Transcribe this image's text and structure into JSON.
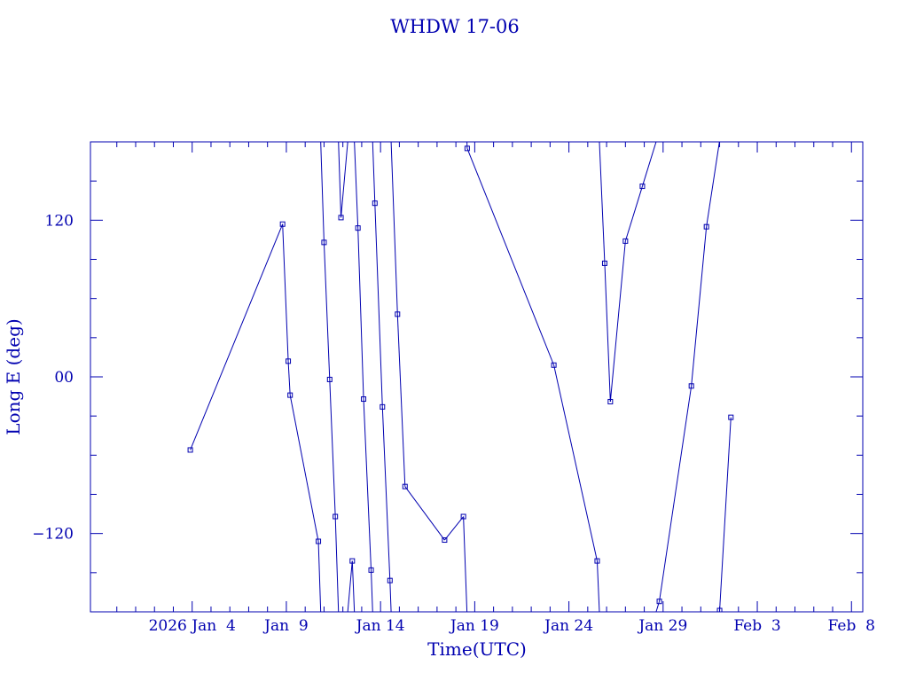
{
  "chart_data": {
    "type": "line",
    "title": "WHDW 17-06",
    "xlabel": "Time(UTC)",
    "ylabel": "Long E (deg)",
    "x_unit": "day of January 2026",
    "xlim": [
      -1.4,
      39.6
    ],
    "ylim": [
      -180,
      180
    ],
    "grid": false,
    "colors": {
      "line": "#0000b0",
      "text": "#0000b0",
      "frame": "#0000b0"
    },
    "x_ticks": [
      {
        "x": 4,
        "label": "2026 Jan  4"
      },
      {
        "x": 9,
        "label": "Jan  9"
      },
      {
        "x": 14,
        "label": "Jan 14"
      },
      {
        "x": 19,
        "label": "Jan 19"
      },
      {
        "x": 24,
        "label": "Jan 24"
      },
      {
        "x": 29,
        "label": "Jan 29"
      },
      {
        "x": 34,
        "label": "Feb  3"
      },
      {
        "x": 39,
        "label": "Feb  8"
      }
    ],
    "y_ticks": [
      {
        "y": 120,
        "label": "120"
      },
      {
        "y": 0,
        "label": "00"
      },
      {
        "y": -120,
        "label": "−120"
      }
    ],
    "points": [
      [
        3.9,
        -56
      ],
      [
        8.8,
        117
      ],
      [
        9.1,
        12
      ],
      [
        9.2,
        -14
      ],
      [
        10.7,
        -126
      ],
      [
        11.0,
        103
      ],
      [
        11.3,
        -2
      ],
      [
        11.6,
        -107
      ],
      [
        11.9,
        122
      ],
      [
        12.5,
        -141
      ],
      [
        12.8,
        114
      ],
      [
        13.1,
        -17
      ],
      [
        13.5,
        -148
      ],
      [
        13.7,
        133
      ],
      [
        14.1,
        -23
      ],
      [
        14.5,
        -156
      ],
      [
        14.9,
        48
      ],
      [
        15.3,
        -84
      ],
      [
        17.4,
        -125
      ],
      [
        18.4,
        -107
      ],
      [
        18.6,
        175
      ],
      [
        23.2,
        9
      ],
      [
        25.5,
        -141
      ],
      [
        25.9,
        87
      ],
      [
        26.2,
        -19
      ],
      [
        27.0,
        104
      ],
      [
        27.9,
        146
      ],
      [
        28.8,
        -172
      ],
      [
        30.5,
        -7
      ],
      [
        31.3,
        115
      ],
      [
        32.0,
        -179
      ],
      [
        32.6,
        -31
      ]
    ]
  }
}
